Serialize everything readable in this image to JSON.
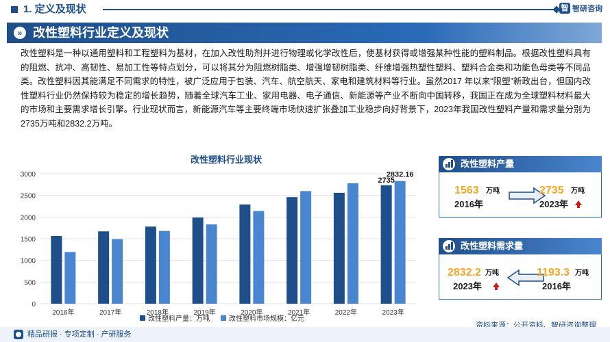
{
  "header": {
    "section_title": "1. 定义及现状",
    "logo_text": "智研咨询",
    "logo_mark": "智"
  },
  "banner": {
    "title": "改性塑料行业定义及现状"
  },
  "paragraph": "改性塑料是一种以通用塑料和工程塑料为基材，在加入改性助剂并进行物理或化学改性后，使基材获得或增强某种性能的塑料制品。根据改性塑料具有的阻燃、抗冲、高韧性、易加工性等特点划分，可以将其分为阻燃树脂类、增强增韧树脂类、纤维增强热塑性塑料、塑料合金类和功能色母类等不同品类。改性塑料因其能满足不同需求的特性，被广泛应用于包装、汽车、航空航天、家电和建筑材料等行业。虽然2017 年以来“限塑”新政出台，但国内改性塑料行业仍然保持较为稳定的增长趋势，随着全球汽车工业、家用电器、电子通信、新能源等产业不断向中国转移，我国正在成为全球塑料材料最大的市场和主要需求增长引擎。行业现状而言，新能源汽车等主要终端市场快速扩张叠加工业稳步向好背景下，2023年我国改性塑料产量和需求量分别为2735万吨和2832.2万吨。",
  "chart_data": {
    "type": "bar",
    "title": "改性塑料行业现状",
    "categories": [
      "2016年",
      "2017年",
      "2018年",
      "2019年",
      "2020年",
      "2021年",
      "2022年",
      "2023年"
    ],
    "series": [
      {
        "name": "改性塑料产量：万吨",
        "color": "#1f4f8a",
        "values": [
          1563,
          1670,
          1780,
          1990,
          2290,
          2460,
          2560,
          2735
        ]
      },
      {
        "name": "改性塑料市场规模：亿元",
        "color": "#4a86cf",
        "values": [
          1193.3,
          1490,
          1680,
          1830,
          2140,
          2600,
          2780,
          2832.16
        ]
      }
    ],
    "ylim": [
      0,
      3000
    ],
    "yticks": [
      "0",
      "500",
      "1000",
      "1500",
      "2000",
      "2500",
      "3000"
    ],
    "data_labels": {
      "production_2023": "2735",
      "market_2023": "2832.16"
    },
    "grid": true,
    "legend_position": "bottom"
  },
  "production_card": {
    "title": "改性塑料产量",
    "from_value": "1563",
    "from_unit": "万吨",
    "from_year": "2016年",
    "to_value": "2735",
    "to_unit": "万吨",
    "to_year": "2023年"
  },
  "demand_card": {
    "title": "改性塑料需求量",
    "new_value": "2832.2",
    "new_unit": "万吨",
    "new_year": "2023年",
    "old_value": "1193.3",
    "old_unit": "万吨",
    "old_year": "2016年"
  },
  "footer": {
    "slogan": "精品研报 · 专项定制 · 产研服务",
    "source": "资料来源：公开资料、智研咨询整理"
  },
  "colors": {
    "brand": "#1f4f8a",
    "accent": "#f5a623",
    "up_arrow": "#c8201c"
  },
  "icons": [
    "section-marker-icon",
    "chevron-right-icon",
    "bar-chart-icon",
    "arrow-right-icon",
    "arrow-left-icon",
    "up-arrow-icon",
    "logo-icon"
  ]
}
